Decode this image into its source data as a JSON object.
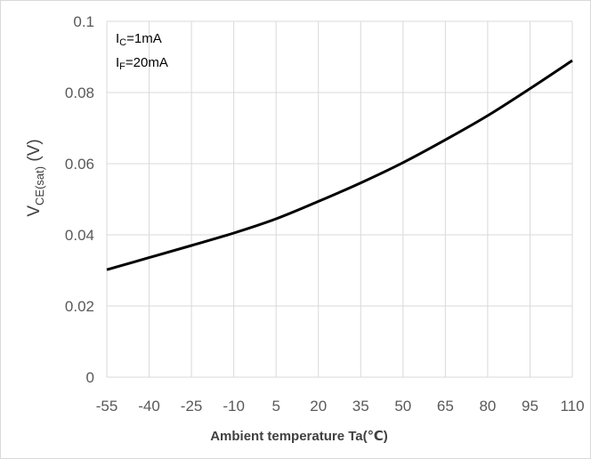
{
  "chart_data": {
    "type": "line",
    "title": "",
    "xlabel": "Ambient temperature Ta(℃)",
    "ylabel": {
      "main": "V",
      "sub": "CE(sat)",
      "unit": " (V)"
    },
    "x_ticks": [
      "-55",
      "-40",
      "-25",
      "-10",
      "5",
      "20",
      "35",
      "50",
      "65",
      "80",
      "95",
      "110"
    ],
    "y_ticks": [
      "0",
      "0.02",
      "0.04",
      "0.06",
      "0.08",
      "0.1"
    ],
    "xlim": [
      -55,
      110
    ],
    "ylim": [
      0,
      0.1
    ],
    "grid": true,
    "annotations": [
      {
        "main": "I",
        "sub": "C",
        "rest": "=1mA"
      },
      {
        "main": "I",
        "sub": "F",
        "rest": "=20mA"
      }
    ],
    "series": [
      {
        "color": "#000000",
        "x": [
          -55,
          -40,
          -25,
          -10,
          5,
          20,
          35,
          50,
          65,
          80,
          95,
          110
        ],
        "y": [
          0.0302,
          0.0336,
          0.037,
          0.0405,
          0.0445,
          0.0494,
          0.0546,
          0.0603,
          0.0667,
          0.0735,
          0.0811,
          0.089
        ]
      }
    ]
  }
}
